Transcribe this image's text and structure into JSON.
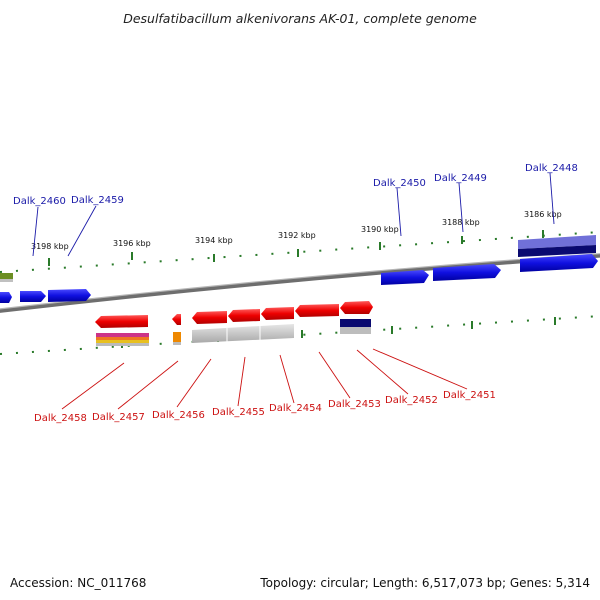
{
  "title": "Desulfatibacillum alkenivorans AK-01, complete genome",
  "accession": "Accession: NC_011768",
  "topology": "Topology: circular; Length: 6,517,073 bp; Genes: 5,314",
  "kbp_ticks": [
    "3198 kbp",
    "3196 kbp",
    "3194 kbp",
    "3192 kbp",
    "3190 kbp",
    "3188 kbp",
    "3186 kbp"
  ],
  "top_labels": [
    "Dalk_2460",
    "Dalk_2459",
    "Dalk_2450",
    "Dalk_2449",
    "Dalk_2448"
  ],
  "bottom_labels": [
    "Dalk_2458",
    "Dalk_2457",
    "Dalk_2456",
    "Dalk_2455",
    "Dalk_2454",
    "Dalk_2453",
    "Dalk_2452",
    "Dalk_2451"
  ],
  "colors": {
    "forward_gene": "#1010e0",
    "reverse_gene": "#ee1111",
    "tick": "#2a7a2a",
    "backbone": "#888888",
    "top_label": "#1a1aa8",
    "bottom_label": "#cc1111"
  }
}
